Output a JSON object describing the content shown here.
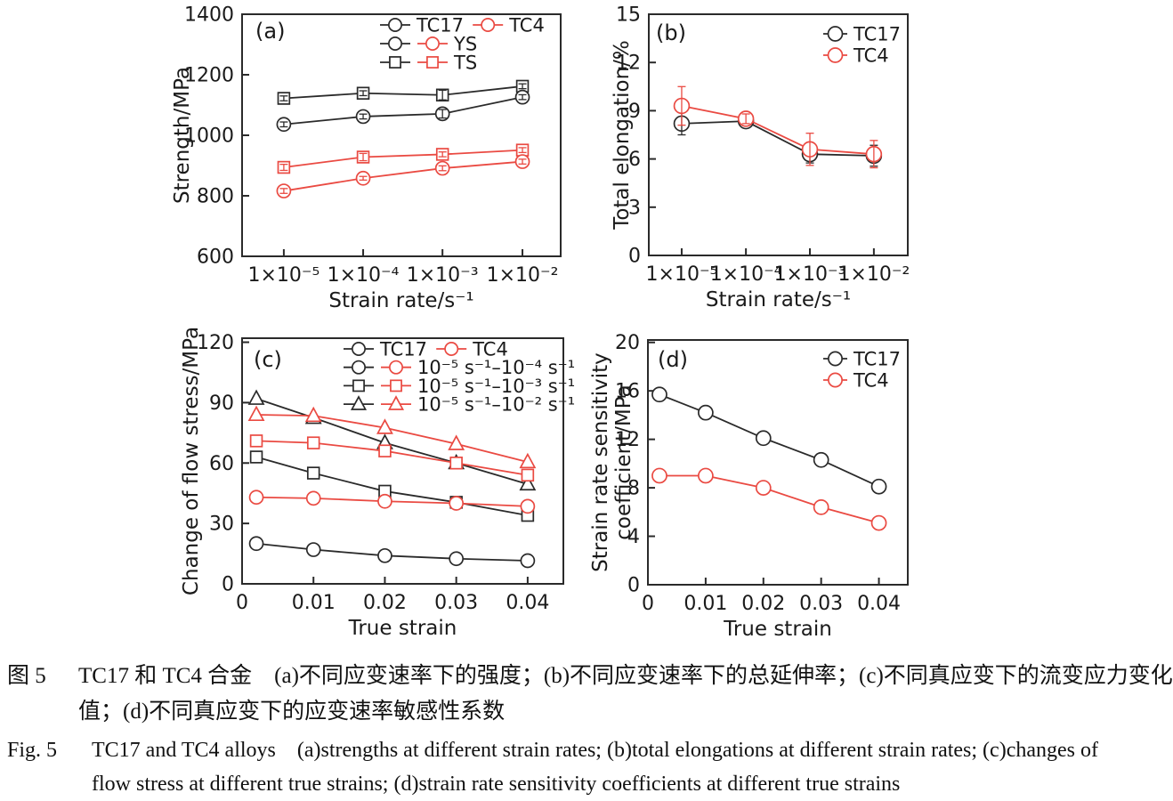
{
  "palette": {
    "black": "#2a2a2a",
    "red": "#ea4a42",
    "text": "#1a1a1a",
    "background": "#ffffff"
  },
  "chart_data": [
    {
      "id": "a",
      "panel_tag": "(a)",
      "type": "line",
      "x_type": "categorical",
      "categories": [
        "1×10⁻⁵",
        "1×10⁻⁴",
        "1×10⁻³",
        "1×10⁻²"
      ],
      "xlabel": "Strain rate/s⁻¹",
      "ylabel": "Strength/MPa",
      "ylim": [
        600,
        1400
      ],
      "yticks": [
        600,
        800,
        1000,
        1200,
        1400
      ],
      "grid": false,
      "legend_position": "top-inside",
      "legend_rows": [
        {
          "items": [
            {
              "marker": "circle",
              "color": "black",
              "label": "TC17"
            },
            {
              "marker": "circle",
              "color": "red",
              "label": "TC4"
            }
          ]
        },
        {
          "items": [
            {
              "marker": "circle",
              "color": "black"
            },
            {
              "marker": "circle",
              "color": "red",
              "label": "YS"
            }
          ]
        },
        {
          "items": [
            {
              "marker": "square",
              "color": "black"
            },
            {
              "marker": "square",
              "color": "red",
              "label": "TS"
            }
          ]
        }
      ],
      "series": [
        {
          "name": "TC17 TS",
          "color": "black",
          "marker": "square",
          "values": [
            1122,
            1139,
            1133,
            1162
          ],
          "yerr": [
            8,
            8,
            16,
            8
          ]
        },
        {
          "name": "TC17 YS",
          "color": "black",
          "marker": "circle",
          "values": [
            1036,
            1062,
            1071,
            1126
          ],
          "yerr": [
            8,
            8,
            14,
            8
          ]
        },
        {
          "name": "TC4 TS",
          "color": "red",
          "marker": "square",
          "values": [
            894,
            928,
            937,
            951
          ],
          "yerr": [
            10,
            12,
            8,
            8
          ]
        },
        {
          "name": "TC4 YS",
          "color": "red",
          "marker": "circle",
          "values": [
            816,
            858,
            891,
            913
          ],
          "yerr": [
            8,
            6,
            8,
            8
          ]
        }
      ]
    },
    {
      "id": "b",
      "panel_tag": "(b)",
      "type": "line",
      "x_type": "categorical",
      "categories": [
        "1×10⁻⁵",
        "1×10⁻⁴",
        "1×10⁻³",
        "1×10⁻²"
      ],
      "xlabel": "Strain rate/s⁻¹",
      "ylabel": "Total elongation/%",
      "ylim": [
        0,
        15
      ],
      "yticks": [
        0,
        3,
        6,
        9,
        12,
        15
      ],
      "grid": false,
      "legend_position": "top-right-inside",
      "legend_rows": [
        {
          "items": [
            {
              "marker": "circle",
              "color": "black",
              "label": "TC17"
            }
          ]
        },
        {
          "items": [
            {
              "marker": "circle",
              "color": "red",
              "label": "TC4"
            }
          ]
        }
      ],
      "series": [
        {
          "name": "TC17",
          "color": "black",
          "marker": "circle",
          "values": [
            8.2,
            8.35,
            6.3,
            6.2
          ],
          "yerr": [
            0.7,
            0.25,
            0.55,
            0.65
          ]
        },
        {
          "name": "TC4",
          "color": "red",
          "marker": "circle",
          "values": [
            9.3,
            8.5,
            6.6,
            6.3
          ],
          "yerr": [
            1.2,
            0.3,
            1.0,
            0.85
          ]
        }
      ]
    },
    {
      "id": "c",
      "panel_tag": "(c)",
      "type": "line",
      "x_type": "numeric",
      "x": [
        0.002,
        0.01,
        0.02,
        0.03,
        0.04
      ],
      "xlim": [
        0,
        0.045
      ],
      "xticks": [
        0,
        0.01,
        0.02,
        0.03,
        0.04
      ],
      "xtick_labels": [
        "0",
        "0.01",
        "0.02",
        "0.03",
        "0.04"
      ],
      "xlabel": "True strain",
      "ylabel": "Change of flow stress/MPa",
      "ylim": [
        0,
        122
      ],
      "yticks": [
        0,
        30,
        60,
        90,
        120
      ],
      "grid": false,
      "legend_position": "top-inside",
      "legend_rows": [
        {
          "items": [
            {
              "marker": "circle",
              "color": "black",
              "label": "TC17"
            },
            {
              "marker": "circle",
              "color": "red",
              "label": "TC4"
            }
          ]
        },
        {
          "items": [
            {
              "marker": "circle",
              "color": "black"
            },
            {
              "marker": "circle",
              "color": "red",
              "label": "10⁻⁵ s⁻¹–10⁻⁴ s⁻¹"
            }
          ]
        },
        {
          "items": [
            {
              "marker": "square",
              "color": "black"
            },
            {
              "marker": "square",
              "color": "red",
              "label": "10⁻⁵ s⁻¹–10⁻³ s⁻¹"
            }
          ]
        },
        {
          "items": [
            {
              "marker": "triangle",
              "color": "black"
            },
            {
              "marker": "triangle",
              "color": "red",
              "label": "10⁻⁵ s⁻¹–10⁻² s⁻¹"
            }
          ]
        }
      ],
      "series": [
        {
          "name": "TC17 10⁻⁵ s⁻¹–10⁻⁴ s⁻¹",
          "color": "black",
          "marker": "circle",
          "values": [
            20,
            17,
            14,
            12.5,
            11.5
          ]
        },
        {
          "name": "TC17 10⁻⁵ s⁻¹–10⁻³ s⁻¹",
          "color": "black",
          "marker": "square",
          "values": [
            63,
            55,
            46,
            40.5,
            34
          ]
        },
        {
          "name": "TC17 10⁻⁵ s⁻¹–10⁻² s⁻¹",
          "color": "black",
          "marker": "triangle",
          "values": [
            92,
            82.5,
            70,
            60,
            49.5
          ]
        },
        {
          "name": "TC4 10⁻⁵ s⁻¹–10⁻⁴ s⁻¹",
          "color": "red",
          "marker": "circle",
          "values": [
            43,
            42.5,
            41,
            40,
            38.5
          ]
        },
        {
          "name": "TC4 10⁻⁵ s⁻¹–10⁻³ s⁻¹",
          "color": "red",
          "marker": "square",
          "values": [
            71,
            70,
            66,
            60,
            54
          ]
        },
        {
          "name": "TC4 10⁻⁵ s⁻¹–10⁻² s⁻¹",
          "color": "red",
          "marker": "triangle",
          "values": [
            84,
            83.5,
            77.5,
            69.5,
            60.5
          ]
        }
      ]
    },
    {
      "id": "d",
      "panel_tag": "(d)",
      "type": "line",
      "x_type": "numeric",
      "x": [
        0.002,
        0.01,
        0.02,
        0.03,
        0.04
      ],
      "xlim": [
        0,
        0.045
      ],
      "xticks": [
        0,
        0.01,
        0.02,
        0.03,
        0.04
      ],
      "xtick_labels": [
        "0",
        "0.01",
        "0.02",
        "0.03",
        "0.04"
      ],
      "xlabel": "True strain",
      "ylabel": [
        "Strain rate sensitivity",
        "coefficient/MPa"
      ],
      "ylim": [
        0,
        20.2
      ],
      "yticks": [
        0,
        4,
        8,
        12,
        16,
        20
      ],
      "grid": false,
      "legend_position": "top-right-inside",
      "legend_rows": [
        {
          "items": [
            {
              "marker": "circle",
              "color": "black",
              "label": "TC17"
            }
          ]
        },
        {
          "items": [
            {
              "marker": "circle",
              "color": "red",
              "label": "TC4"
            }
          ]
        }
      ],
      "series": [
        {
          "name": "TC17",
          "color": "black",
          "marker": "circle",
          "values": [
            15.7,
            14.2,
            12.1,
            10.3,
            8.1
          ]
        },
        {
          "name": "TC4",
          "color": "red",
          "marker": "circle",
          "values": [
            9.0,
            9.0,
            8.0,
            6.4,
            5.1
          ]
        }
      ]
    }
  ],
  "caption_zh": {
    "label": "图 5",
    "line1": "TC17 和 TC4 合金　(a)不同应变速率下的强度；(b)不同应变速率下的总延伸率；(c)不同真应变下的流变应力变化",
    "line2": "值；(d)不同真应变下的应变速率敏感性系数"
  },
  "caption_en": {
    "label": "Fig. 5",
    "line1": "TC17 and TC4 alloys　(a)strengths at different strain rates; (b)total elongations at different strain rates; (c)changes of",
    "line2": "flow stress at different true strains; (d)strain rate sensitivity coefficients at different true strains"
  }
}
